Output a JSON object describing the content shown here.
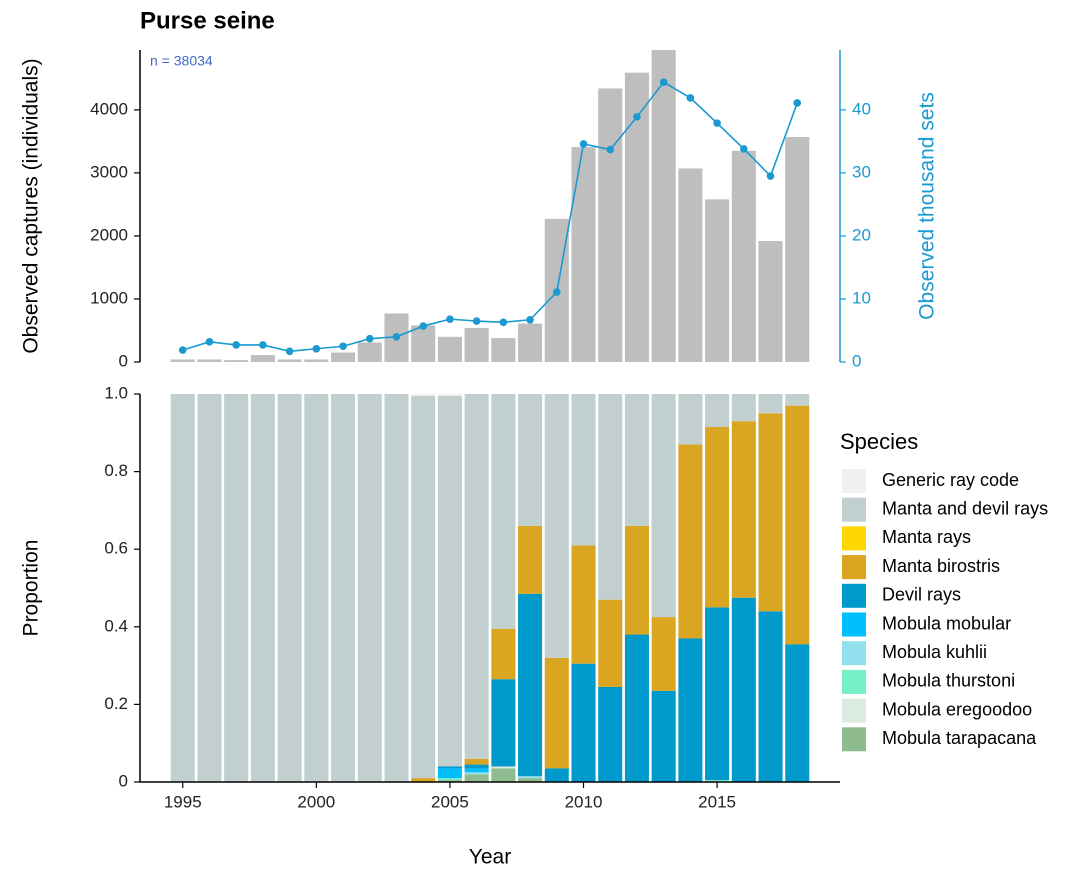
{
  "chart_data": [
    {
      "type": "combo",
      "title": "Purse seine",
      "annotation": "n = 38034",
      "ylabel": "Observed captures (individuals)",
      "y2label": "Observed thousand sets",
      "x": [
        1995,
        1996,
        1997,
        1998,
        1999,
        2000,
        2001,
        2002,
        2003,
        2004,
        2005,
        2006,
        2007,
        2008,
        2009,
        2010,
        2011,
        2012,
        2013,
        2014,
        2015,
        2016,
        2017,
        2018
      ],
      "xlim": [
        1993.4,
        2019.6
      ],
      "ylim": [
        0,
        4950
      ],
      "yticks": [
        0,
        1000,
        2000,
        3000,
        4000
      ],
      "y2lim": [
        0,
        49.5
      ],
      "y2ticks": [
        0,
        10,
        20,
        30,
        40
      ],
      "series": [
        {
          "type": "bar",
          "color": "#bebebe",
          "values": [
            40,
            40,
            30,
            110,
            40,
            40,
            150,
            310,
            770,
            580,
            400,
            540,
            380,
            610,
            2270,
            3410,
            4340,
            4590,
            4950,
            3070,
            2580,
            3350,
            1920,
            3570
          ]
        },
        {
          "type": "line",
          "color": "#1a9ad0",
          "axis": "y2",
          "values": [
            1.9,
            3.2,
            2.7,
            2.7,
            1.7,
            2.1,
            2.5,
            3.7,
            4.0,
            5.7,
            6.8,
            6.5,
            6.3,
            6.7,
            11.1,
            34.6,
            33.7,
            38.9,
            44.4,
            41.9,
            37.9,
            33.8,
            29.5,
            41.1
          ]
        }
      ]
    },
    {
      "type": "stacked_bar",
      "ylabel": "Proportion",
      "xlabel": "Year",
      "x": [
        1995,
        1996,
        1997,
        1998,
        1999,
        2000,
        2001,
        2002,
        2003,
        2004,
        2005,
        2006,
        2007,
        2008,
        2009,
        2010,
        2011,
        2012,
        2013,
        2014,
        2015,
        2016,
        2017,
        2018
      ],
      "xlim": [
        1993.4,
        2019.6
      ],
      "xticks": [
        1995,
        2000,
        2005,
        2010,
        2015
      ],
      "ylim": [
        0,
        1
      ],
      "yticks": [
        0,
        0.2,
        0.4,
        0.6,
        0.8,
        {
          "value": 1,
          "label": "1.0"
        }
      ],
      "legend_title": "Species",
      "series": [
        {
          "name": "Generic ray code",
          "color": "#f0f0f0",
          "values": [
            0,
            0,
            0,
            0,
            0,
            0,
            0,
            0,
            0,
            0.005,
            0.005,
            0,
            0,
            0,
            0,
            0,
            0,
            0,
            0,
            0,
            0,
            0,
            0,
            0
          ]
        },
        {
          "name": "Manta and devil rays",
          "color": "#c1cfcf",
          "values": [
            1,
            1,
            1,
            1,
            1,
            1,
            1,
            1,
            1,
            0.985,
            0.955,
            0.94,
            0.605,
            0.34,
            0.68,
            0.39,
            0.53,
            0.34,
            0.575,
            0.13,
            0.085,
            0.07,
            0.05,
            0.03
          ]
        },
        {
          "name": "Manta rays",
          "color": "#ffd700",
          "values": [
            0,
            0,
            0,
            0,
            0,
            0,
            0,
            0,
            0,
            0,
            0,
            0,
            0,
            0,
            0,
            0,
            0,
            0,
            0,
            0,
            0,
            0,
            0,
            0
          ]
        },
        {
          "name": "Manta birostris",
          "color": "#daa520",
          "values": [
            0,
            0,
            0,
            0,
            0,
            0,
            0,
            0,
            0,
            0.01,
            0,
            0.015,
            0.13,
            0.175,
            0.285,
            0.305,
            0.225,
            0.28,
            0.19,
            0.5,
            0.465,
            0.455,
            0.51,
            0.615
          ]
        },
        {
          "name": "Devil rays",
          "color": "#0099cc",
          "values": [
            0,
            0,
            0,
            0,
            0,
            0,
            0,
            0,
            0,
            0,
            0.005,
            0.01,
            0.225,
            0.47,
            0.035,
            0.305,
            0.245,
            0.38,
            0.235,
            0.37,
            0.445,
            0.475,
            0.44,
            0.355
          ]
        },
        {
          "name": "Mobula mobular",
          "color": "#00bfff",
          "values": [
            0,
            0,
            0,
            0,
            0,
            0,
            0,
            0,
            0,
            0,
            0.025,
            0.01,
            0,
            0,
            0,
            0,
            0,
            0,
            0,
            0,
            0,
            0,
            0,
            0
          ]
        },
        {
          "name": "Mobula kuhlii",
          "color": "#92e0ee",
          "values": [
            0,
            0,
            0,
            0,
            0,
            0,
            0,
            0,
            0,
            0,
            0,
            0.005,
            0,
            0.005,
            0,
            0,
            0,
            0,
            0,
            0,
            0,
            0,
            0,
            0
          ]
        },
        {
          "name": "Mobula thurstoni",
          "color": "#76eec6",
          "values": [
            0,
            0,
            0,
            0,
            0,
            0,
            0,
            0,
            0,
            0,
            0.005,
            0,
            0,
            0,
            0,
            0,
            0,
            0,
            0,
            0,
            0.005,
            0,
            0,
            0
          ]
        },
        {
          "name": "Mobula eregoodoo",
          "color": "#dcebe0",
          "values": [
            0,
            0,
            0,
            0,
            0,
            0,
            0,
            0,
            0,
            0,
            0,
            0,
            0.005,
            0,
            0,
            0,
            0,
            0,
            0,
            0,
            0,
            0,
            0,
            0
          ]
        },
        {
          "name": "Mobula tarapacana",
          "color": "#8fbc8f",
          "values": [
            0,
            0,
            0,
            0,
            0,
            0,
            0,
            0,
            0,
            0,
            0.005,
            0.02,
            0.035,
            0.01,
            0,
            0,
            0,
            0,
            0,
            0,
            0,
            0,
            0,
            0
          ]
        }
      ]
    }
  ]
}
